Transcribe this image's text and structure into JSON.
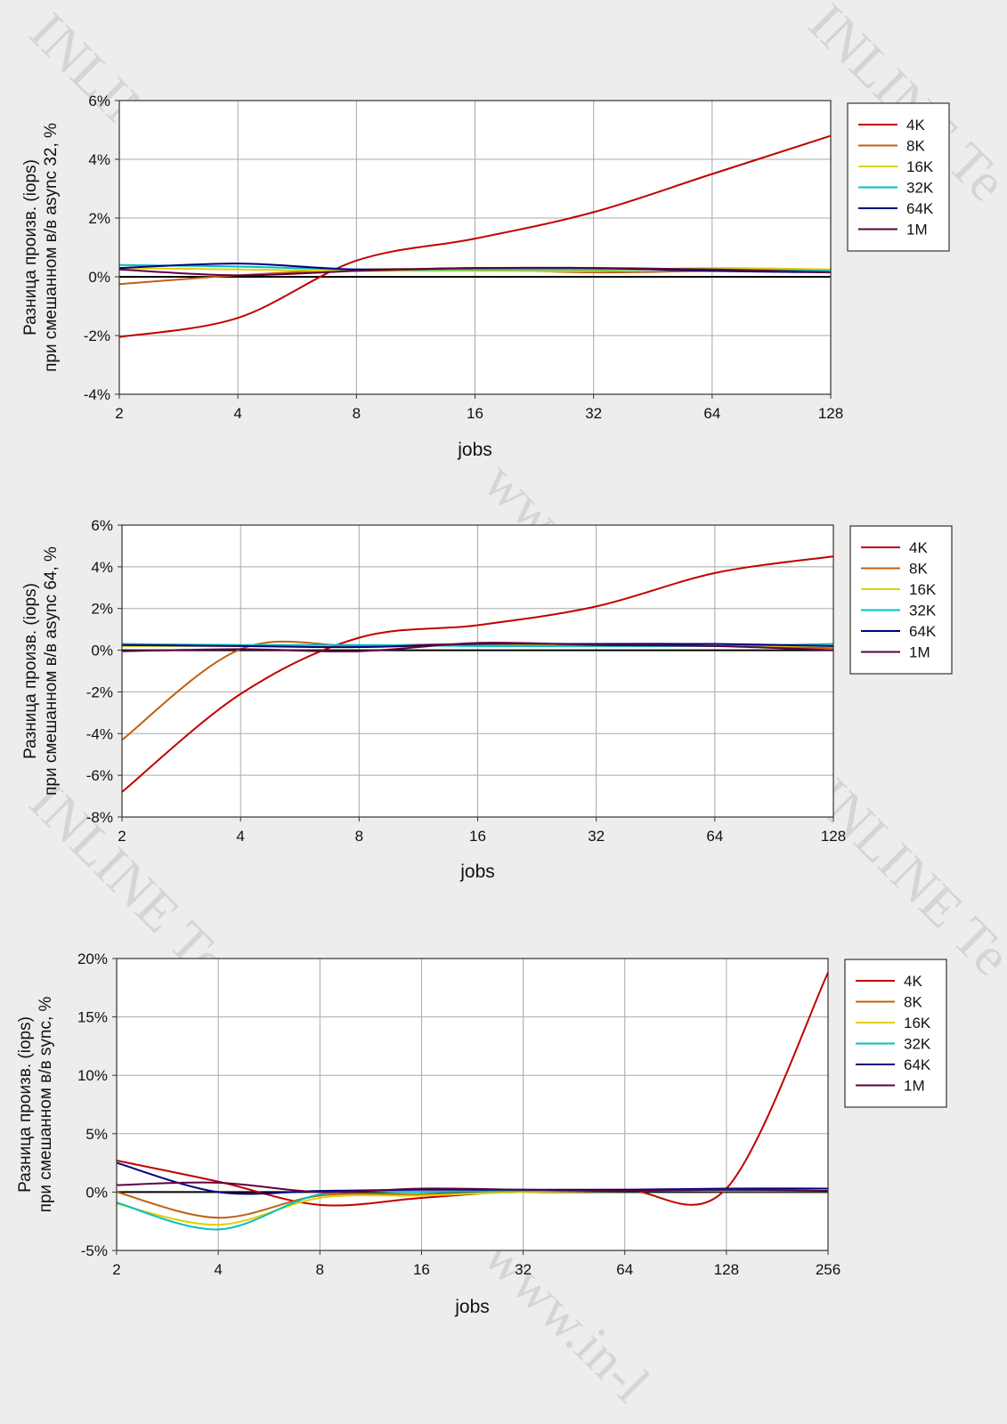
{
  "watermarks": [
    {
      "text": "INLINE Technologies"
    },
    {
      "text": "INLINE Te"
    },
    {
      "text": "www.in-line.ru"
    },
    {
      "text": "INLINE Technologies"
    },
    {
      "text": "INLINE Te"
    },
    {
      "text": "www.in-l"
    }
  ],
  "chart_data": [
    {
      "type": "line",
      "ylabel": "Разница произв. (iops)\nпри смешанном в/в async 32, %",
      "xlabel": "jobs",
      "x": [
        2,
        4,
        8,
        16,
        32,
        64,
        128
      ],
      "x_ticks": [
        "2",
        "4",
        "8",
        "16",
        "32",
        "64",
        "128"
      ],
      "x_scale": "log2",
      "ylim": [
        -4,
        6
      ],
      "y_ticks": [
        "-4%",
        "-2%",
        "0%",
        "2%",
        "4%",
        "6%"
      ],
      "grid": true,
      "legend": "right",
      "series": [
        {
          "name": "4K",
          "color": "#c00000",
          "values": [
            -2.05,
            -1.4,
            0.55,
            1.3,
            2.2,
            3.5,
            4.8
          ]
        },
        {
          "name": "8K",
          "color": "#c06010",
          "values": [
            -0.25,
            0.05,
            0.25,
            0.25,
            0.15,
            0.2,
            0.2
          ]
        },
        {
          "name": "16K",
          "color": "#e0d000",
          "values": [
            0.3,
            0.25,
            0.2,
            0.2,
            0.2,
            0.3,
            0.25
          ]
        },
        {
          "name": "32K",
          "color": "#00c0c0",
          "values": [
            0.4,
            0.35,
            0.25,
            0.25,
            0.25,
            0.25,
            0.2
          ]
        },
        {
          "name": "64K",
          "color": "#000080",
          "values": [
            0.3,
            0.45,
            0.25,
            0.3,
            0.3,
            0.2,
            0.15
          ]
        },
        {
          "name": "1M",
          "color": "#600040",
          "values": [
            0.25,
            0.05,
            0.2,
            0.3,
            0.3,
            0.25,
            0.15
          ]
        }
      ]
    },
    {
      "type": "line",
      "ylabel": "Разница произв. (iops)\nпри смешанном в/в async 64, %",
      "xlabel": "jobs",
      "x": [
        2,
        4,
        8,
        16,
        32,
        64,
        128
      ],
      "x_ticks": [
        "2",
        "4",
        "8",
        "16",
        "32",
        "64",
        "128"
      ],
      "x_scale": "log2",
      "ylim": [
        -8,
        6
      ],
      "y_ticks": [
        "-8%",
        "-6%",
        "-4%",
        "-2%",
        "0%",
        "2%",
        "4%",
        "6%"
      ],
      "grid": true,
      "legend": "right",
      "series": [
        {
          "name": "4K",
          "color": "#c00000",
          "values": [
            -6.8,
            -2.1,
            0.6,
            1.2,
            2.1,
            3.7,
            4.5
          ]
        },
        {
          "name": "8K",
          "color": "#c06010",
          "values": [
            -4.3,
            0.05,
            0.2,
            0.3,
            0.25,
            0.2,
            0.1
          ]
        },
        {
          "name": "16K",
          "color": "#e0d000",
          "values": [
            0.2,
            0.2,
            0.15,
            0.25,
            0.2,
            0.2,
            0.2
          ]
        },
        {
          "name": "32K",
          "color": "#00c0c0",
          "values": [
            0.3,
            0.25,
            0.25,
            0.2,
            0.2,
            0.2,
            0.3
          ]
        },
        {
          "name": "64K",
          "color": "#000080",
          "values": [
            0.25,
            0.2,
            0.15,
            0.3,
            0.3,
            0.3,
            0.2
          ]
        },
        {
          "name": "1M",
          "color": "#600040",
          "values": [
            -0.05,
            0.05,
            -0.05,
            0.35,
            0.25,
            0.2,
            0.0
          ]
        }
      ]
    },
    {
      "type": "line",
      "ylabel": "Разница произв. (iops)\nпри смешанном в/в sync, %",
      "xlabel": "jobs",
      "x": [
        2,
        4,
        8,
        16,
        32,
        64,
        128,
        256
      ],
      "x_ticks": [
        "2",
        "4",
        "8",
        "16",
        "32",
        "64",
        "128",
        "256"
      ],
      "x_scale": "log2",
      "ylim": [
        -5,
        20
      ],
      "y_ticks": [
        "-5%",
        "0%",
        "5%",
        "10%",
        "15%",
        "20%"
      ],
      "grid": true,
      "legend": "right",
      "series": [
        {
          "name": "4K",
          "color": "#c00000",
          "values": [
            2.7,
            0.9,
            -1.1,
            -0.5,
            0.1,
            0.2,
            0.3,
            18.8
          ]
        },
        {
          "name": "8K",
          "color": "#c06010",
          "values": [
            0.0,
            -2.2,
            -0.3,
            -0.2,
            0.0,
            0.1,
            0.1,
            0.1
          ]
        },
        {
          "name": "16K",
          "color": "#e0d000",
          "values": [
            -1.0,
            -2.8,
            -0.5,
            -0.3,
            0.0,
            0.1,
            0.1,
            0.1
          ]
        },
        {
          "name": "32K",
          "color": "#00c0c0",
          "values": [
            -0.9,
            -3.2,
            -0.2,
            0.0,
            0.1,
            0.1,
            0.1,
            0.1
          ]
        },
        {
          "name": "64K",
          "color": "#000080",
          "values": [
            2.5,
            0.0,
            0.1,
            0.2,
            0.2,
            0.2,
            0.3,
            0.3
          ]
        },
        {
          "name": "1M",
          "color": "#600040",
          "values": [
            0.6,
            0.8,
            0.0,
            0.3,
            0.2,
            0.1,
            0.2,
            0.1
          ]
        }
      ]
    }
  ]
}
